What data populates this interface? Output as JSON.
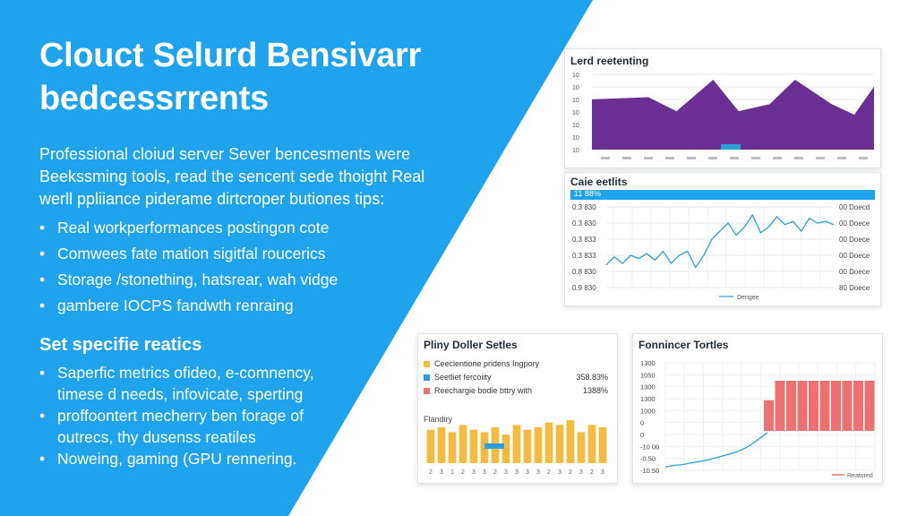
{
  "hero": {
    "title_line1": "Clouct Selurd Bensivarr",
    "title_line2": "bedcessrrents",
    "intro_lines": [
      "Professional cloiud server Sever bencesments were",
      "Beekssming tools, read the sencent sede thoight Real",
      "werll ppliiance piderame dirtcroper butiones tips:"
    ],
    "bullets": [
      "Real workperformances postingon cote",
      "Comwees fate mation sigitfal roucerics",
      "Storage /stonething, hatsrear, wah vidge",
      "gambere IOCPS fandwth renraing"
    ]
  },
  "section2": {
    "title": "Set specifie reatics",
    "bullets": [
      [
        "Saperfic metrics ofideo, e-comnency,",
        "timese d needs, infovicate, sperting"
      ],
      [
        "proffoontert mecherry ben forage of",
        "outrecs, thy dusenss reatiles"
      ],
      [
        "Noweing, gaming (GPU rennering."
      ]
    ]
  },
  "colors": {
    "panel_blue": "#1ea3ec",
    "purple": "#6b2f94",
    "line_blue": "#2a9fd8",
    "bar_yellow": "#f5bb40",
    "bar_red": "#ef7070"
  },
  "cards": {
    "load": {
      "title": "Lerd reetenting",
      "badge": "",
      "y_ticks": [
        "10",
        "10",
        "10",
        "10",
        "10",
        "10",
        "10"
      ]
    },
    "line": {
      "title": "Caie eetlits",
      "header": "11 88%",
      "left_ticks": [
        "0.3 830",
        "0.3 830",
        "0.3 833",
        "0.3 833",
        "0.8 830",
        "0.9 830"
      ],
      "right_ticks": [
        "00 Doecd",
        "00 Doece",
        "00 Doece",
        "00 Doece",
        "00 Doece",
        "80 Doece"
      ],
      "legend": "Dengee"
    },
    "bars": {
      "title": "Pliny Doller Setles",
      "legend": [
        {
          "label": "Ceeclentione pridens Ingpory",
          "value": "",
          "color": "#f5bb40"
        },
        {
          "label": "Seetliet fercoiity",
          "value": "358.83%",
          "color": "#2a9fd8"
        },
        {
          "label": "Reechargie bodie bttry with",
          "value": "1388%",
          "color": "#ef7070"
        }
      ],
      "sublabel": "Flandiry",
      "bar_values": [
        14,
        15,
        13,
        16,
        14,
        13,
        15,
        12,
        16,
        14,
        15,
        17,
        16,
        18,
        13,
        16,
        15
      ],
      "x_ticks": [
        "2",
        "3",
        "1",
        "2",
        "3",
        "3",
        "2",
        "3",
        "3",
        "3",
        "3",
        "2",
        "3",
        "2",
        "3",
        "2",
        "3"
      ]
    },
    "fonnincer": {
      "title": "Fonnincer Tortles",
      "y_ticks": [
        "1300",
        "1050",
        "1300",
        "1300",
        "1000",
        "0",
        "0",
        "-10 00",
        "-0.50",
        "-10.50"
      ],
      "bar_values": [
        55,
        90,
        90,
        90,
        90,
        90,
        90,
        90,
        90,
        90
      ],
      "line_values": [
        2,
        4,
        5,
        7,
        9,
        11,
        14,
        17,
        20,
        24,
        30,
        38,
        46
      ],
      "legend": "Reatored"
    }
  }
}
